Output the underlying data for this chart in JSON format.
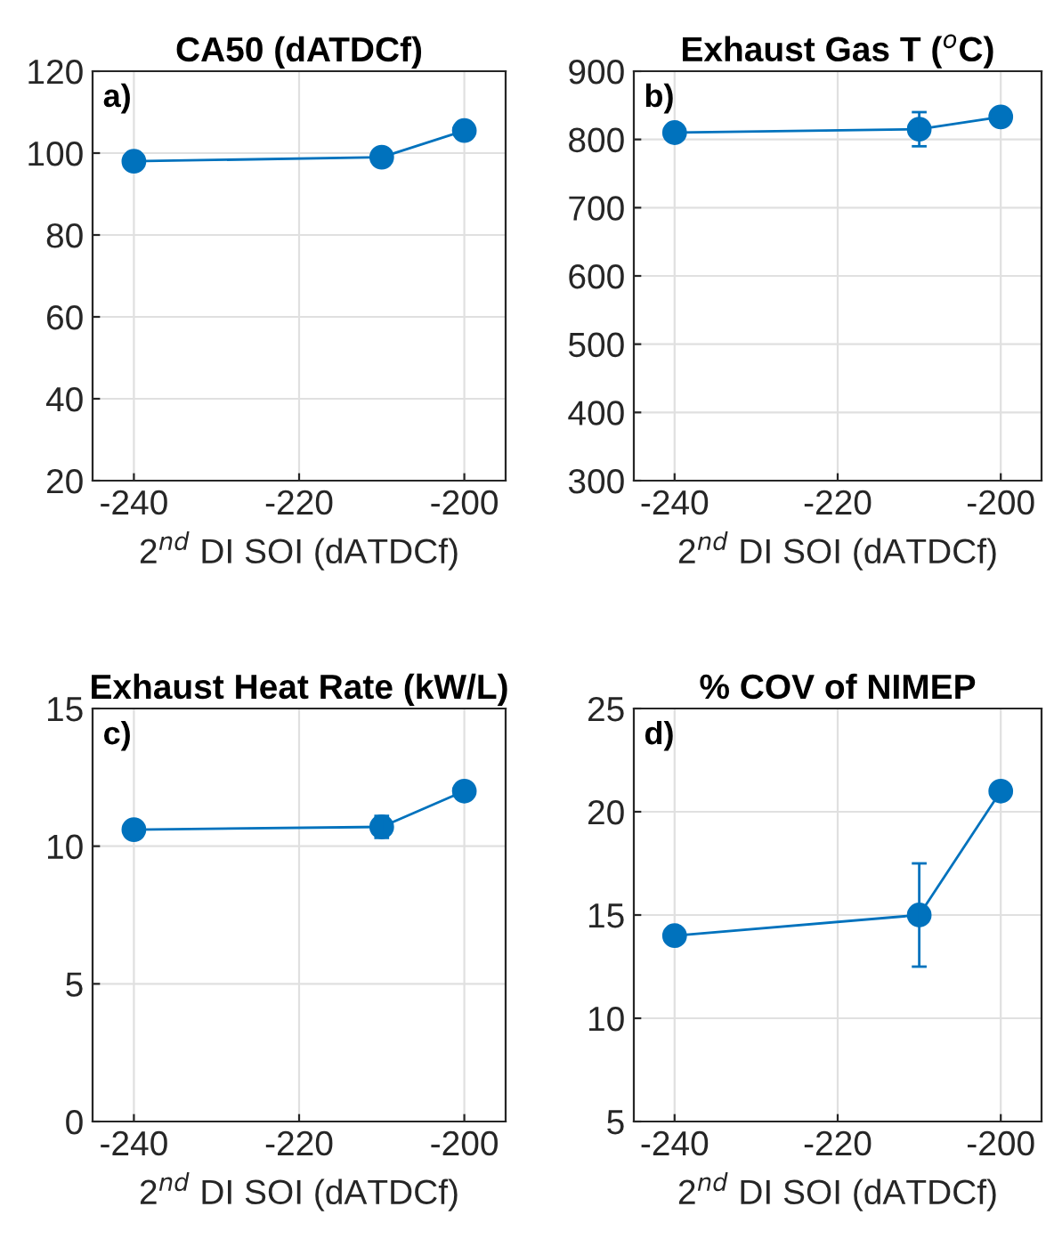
{
  "chart_data": [
    {
      "type": "line",
      "title": "CA50 (dATDCf)",
      "xlabel": "2$^{nd}$ DI SOI (dATDCf)",
      "annotations": [
        "a)"
      ],
      "x": [
        -240,
        -210,
        -200
      ],
      "series": [
        {
          "color": "#0072bd",
          "values": [
            98,
            99,
            105.5
          ]
        }
      ],
      "xlim": [
        -245,
        -195
      ],
      "xticks": [
        -240,
        -220,
        -200
      ],
      "ylim": [
        20,
        120
      ],
      "yticks": [
        20,
        40,
        60,
        80,
        100,
        120
      ],
      "grid": true,
      "marker": "circle",
      "line_style": "solid"
    },
    {
      "type": "line",
      "title": "Exhaust Gas T ($^{o}$C)",
      "xlabel": "2$^{nd}$ DI SOI (dATDCf)",
      "annotations": [
        "b)"
      ],
      "x": [
        -240,
        -210,
        -200
      ],
      "series": [
        {
          "color": "#0072bd",
          "values": [
            810,
            815,
            833
          ],
          "errors": [
            null,
            25,
            null
          ]
        }
      ],
      "xlim": [
        -245,
        -195
      ],
      "xticks": [
        -240,
        -220,
        -200
      ],
      "ylim": [
        300,
        900
      ],
      "yticks": [
        300,
        400,
        500,
        600,
        700,
        800,
        900
      ],
      "grid": true,
      "marker": "circle",
      "line_style": "solid"
    },
    {
      "type": "line",
      "title": "Exhaust Heat Rate (kW/L)",
      "xlabel": "2$^{nd}$ DI SOI (dATDCf)",
      "annotations": [
        "c)"
      ],
      "x": [
        -240,
        -210,
        -200
      ],
      "series": [
        {
          "color": "#0072bd",
          "values": [
            10.6,
            10.7,
            12.0
          ],
          "errors": [
            null,
            0.4,
            null
          ]
        }
      ],
      "xlim": [
        -245,
        -195
      ],
      "xticks": [
        -240,
        -220,
        -200
      ],
      "ylim": [
        0,
        15
      ],
      "yticks": [
        0,
        5,
        10,
        15
      ],
      "grid": true,
      "marker": "circle",
      "line_style": "solid"
    },
    {
      "type": "line",
      "title": "% COV of NIMEP",
      "xlabel": "2$^{nd}$ DI SOI (dATDCf)",
      "annotations": [
        "d)"
      ],
      "x": [
        -240,
        -210,
        -200
      ],
      "series": [
        {
          "color": "#0072bd",
          "values": [
            14,
            15,
            21
          ],
          "errors": [
            null,
            [
              12.5,
              17.5
            ],
            null
          ]
        }
      ],
      "xlim": [
        -245,
        -195
      ],
      "xticks": [
        -240,
        -220,
        -200
      ],
      "ylim": [
        5,
        25
      ],
      "yticks": [
        5,
        10,
        15,
        20,
        25
      ],
      "grid": true,
      "marker": "circle",
      "line_style": "solid"
    }
  ]
}
